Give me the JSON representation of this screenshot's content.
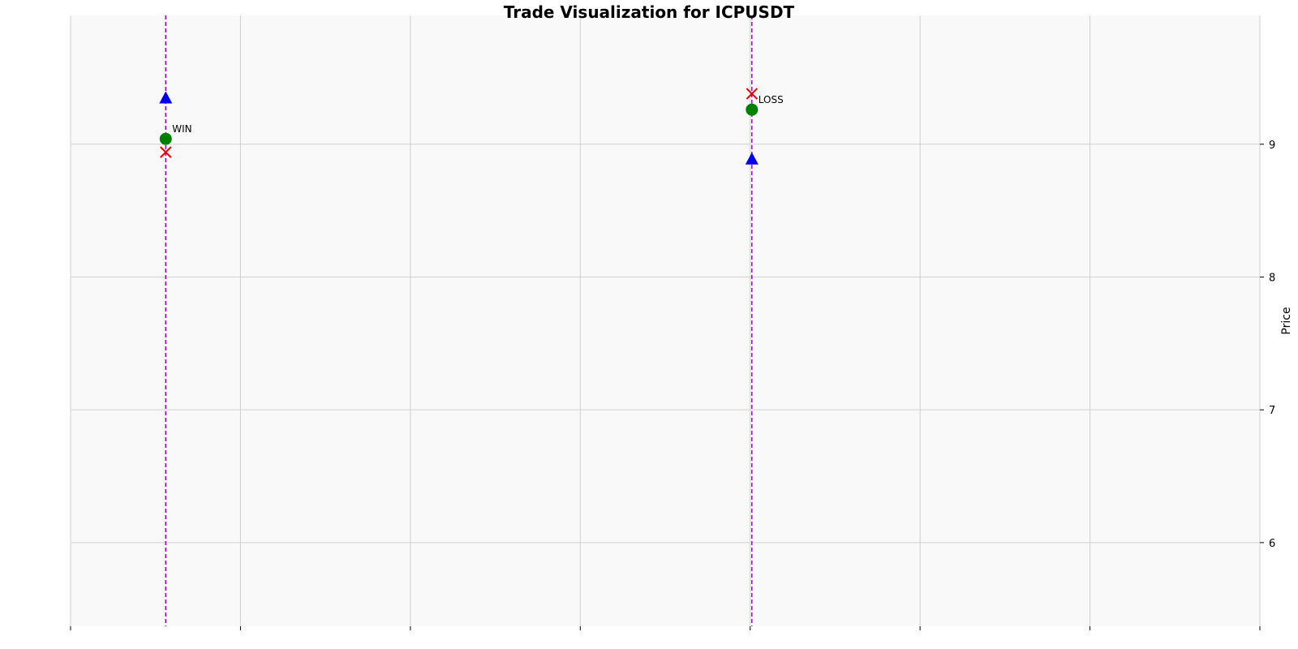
{
  "chart_data": {
    "type": "scatter",
    "title": "Trade Visualization for ICPUSDT",
    "xlabel": "",
    "ylabel": "Price",
    "xlim": [
      0,
      7
    ],
    "ylim": [
      5.37,
      9.97
    ],
    "x_ticks": [
      0,
      1,
      2,
      3,
      4,
      5,
      6,
      7
    ],
    "x_tick_labels": [
      "",
      "",
      "",
      "",
      "",
      "",
      "",
      ""
    ],
    "y_ticks": [
      6,
      7,
      8,
      9
    ],
    "y_tick_labels": [
      "6",
      "7",
      "8",
      "9"
    ],
    "grid": true,
    "y_axis_position": "right",
    "colors": {
      "background": "#f9f9f9",
      "grid": "#d0d0d0",
      "trade_line": "#8800aa",
      "entry": "#0000ee",
      "stop_loss": "#ee0000",
      "exit": "#008000"
    },
    "trades": [
      {
        "x": 0.56,
        "entry": 9.35,
        "stop_loss": 8.94,
        "exit": 9.04,
        "result": "WIN"
      },
      {
        "x": 4.01,
        "entry": 8.89,
        "stop_loss": 9.38,
        "exit": 9.26,
        "result": "LOSS"
      }
    ]
  }
}
